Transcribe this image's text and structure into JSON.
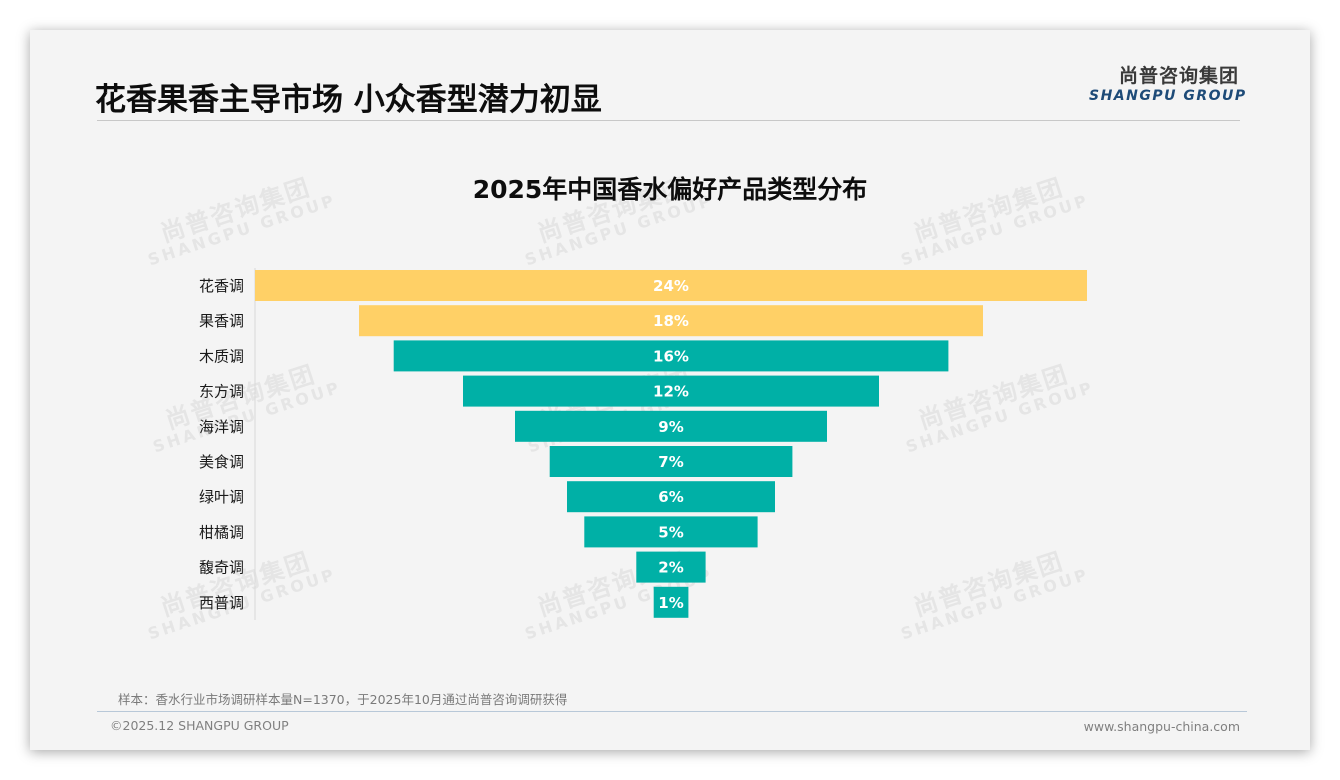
{
  "header": {
    "title": "花香果香主导市场 小众香型潜力初显",
    "logo_cn": "尚普咨询集团",
    "logo_en": "SHANGPU GROUP"
  },
  "watermark": {
    "cn": "尚普咨询集团",
    "en": "SHANGPU GROUP"
  },
  "colors": {
    "highlight": "#FFD066",
    "primary": "#00B0A6",
    "label_text": "#FFFFFF"
  },
  "chart_data": {
    "type": "bar",
    "orientation": "horizontal-funnel",
    "title": "2025年中国香水偏好产品类型分布",
    "xlabel": "",
    "ylabel": "",
    "categories": [
      "花香调",
      "果香调",
      "木质调",
      "东方调",
      "海洋调",
      "美食调",
      "绿叶调",
      "柑橘调",
      "馥奇调",
      "西普调"
    ],
    "values": [
      24,
      18,
      16,
      12,
      9,
      7,
      6,
      5,
      2,
      1
    ],
    "value_labels": [
      "24%",
      "18%",
      "16%",
      "12%",
      "9%",
      "7%",
      "6%",
      "5%",
      "2%",
      "1%"
    ],
    "unit": "%",
    "highlighted_categories": [
      "花香调",
      "果香调"
    ],
    "xlim": [
      0,
      24
    ],
    "grid": false,
    "legend": "none"
  },
  "footer": {
    "note": "样本：香水行业市场调研样本量N=1370，于2025年10月通过尚普咨询调研获得",
    "copyright": "©2025.12 SHANGPU GROUP",
    "website": "www.shangpu-china.com"
  }
}
